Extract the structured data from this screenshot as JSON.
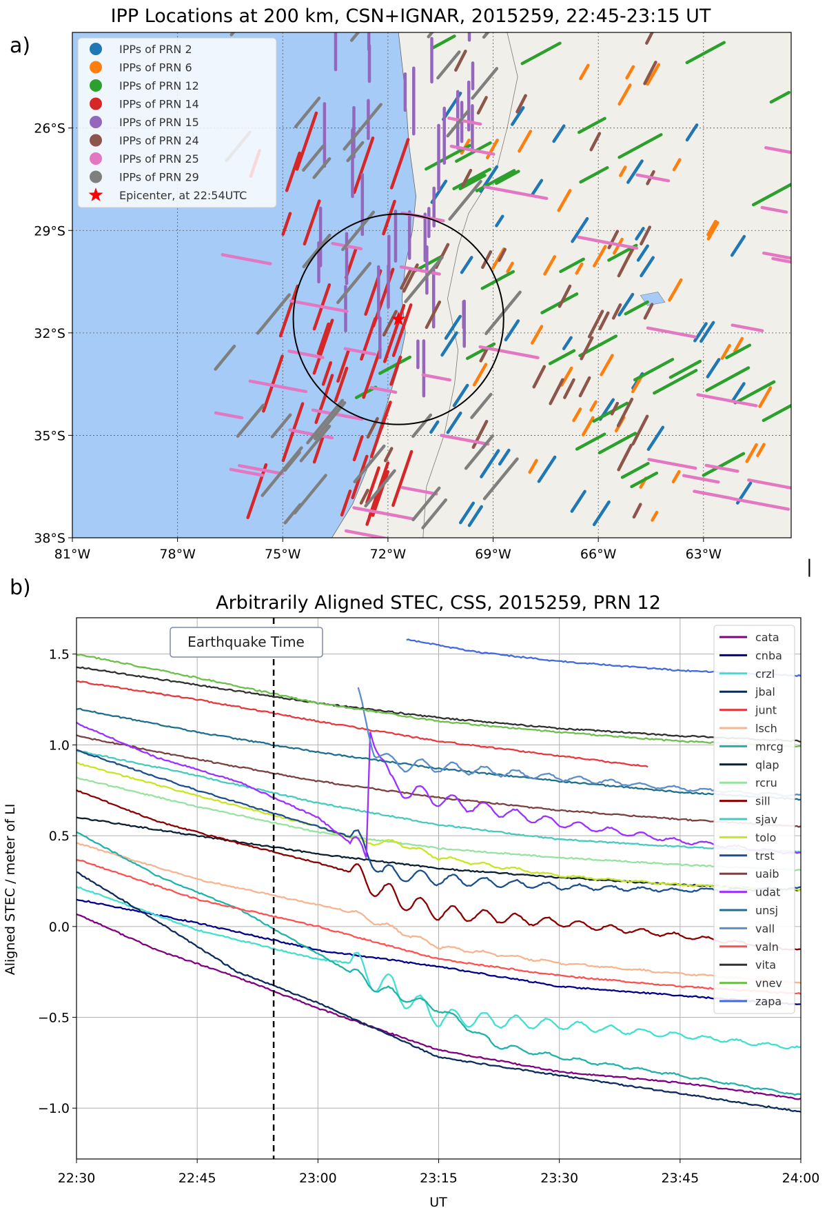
{
  "figure": {
    "panel_a_label": "a)",
    "panel_b_label": "b)"
  },
  "chart_data": [
    {
      "type": "scatter",
      "title": "IPP Locations at 200 km, CSN+IGNAR, 2015259, 22:45-23:15 UT",
      "xlim": [
        -81,
        -60.5
      ],
      "ylim": [
        -38,
        -23.2
      ],
      "x_ticks": [
        -81,
        -78,
        -75,
        -72,
        -69,
        -66,
        -63
      ],
      "x_tick_labels": [
        "81°W",
        "78°W",
        "75°W",
        "72°W",
        "69°W",
        "66°W",
        "63°W"
      ],
      "y_ticks": [
        -26,
        -29,
        -32,
        -35,
        -38
      ],
      "y_tick_labels": [
        "26°S",
        "29°S",
        "32°S",
        "35°S",
        "38°S"
      ],
      "grid": "dotted",
      "legend_position": "top-left",
      "colors": {
        "ocean": "#a6cbf6",
        "land": "#f1efe9"
      },
      "epicenter": {
        "label": "Epicenter, at 22:54UTC",
        "lon": -71.7,
        "lat": -31.6,
        "color": "#ff0000",
        "circle_radius_deg": 3.0
      },
      "series": [
        {
          "name": "IPPs of PRN 2",
          "color": "#1f77b4",
          "region": [
            -71.0,
            -62.0,
            -38.0,
            -25.5
          ],
          "tilt": [
            0.35,
            0.55
          ]
        },
        {
          "name": "IPPs of PRN 6",
          "color": "#ff7f0e",
          "region": [
            -70.0,
            -61.0,
            -38.0,
            -24.5
          ],
          "tilt": [
            0.25,
            0.45
          ]
        },
        {
          "name": "IPPs of PRN 12",
          "color": "#2ca02c",
          "region": [
            -73.5,
            -61.0,
            -37.6,
            -23.6
          ],
          "tilt": [
            0.9,
            0.5
          ]
        },
        {
          "name": "IPPs of PRN 14",
          "color": "#d62728",
          "region": [
            -76.0,
            -71.8,
            -38.0,
            -27.0
          ],
          "tilt": [
            0.4,
            1.2
          ]
        },
        {
          "name": "IPPs of PRN 15",
          "color": "#9467bd",
          "region": [
            -74.0,
            -69.5,
            -34.5,
            -23.2
          ],
          "tilt": [
            0.0,
            1.4
          ]
        },
        {
          "name": "IPPs of PRN 24",
          "color": "#8c564b",
          "region": [
            -73.0,
            -64.5,
            -37.8,
            -23.5
          ],
          "tilt": [
            0.3,
            0.6
          ]
        },
        {
          "name": "IPPs of PRN 25",
          "color": "#e377c2",
          "region": [
            -77.0,
            -61.0,
            -37.8,
            -25.5
          ],
          "tilt": [
            1.3,
            -0.25
          ]
        },
        {
          "name": "IPPs of PRN 29",
          "color": "#7f7f7f",
          "region": [
            -77.5,
            -69.0,
            -37.8,
            -23.2
          ],
          "tilt": [
            0.8,
            1.0
          ]
        }
      ]
    },
    {
      "type": "line",
      "title": "Arbitrarily Aligned STEC, CSS, 2015259, PRN 12",
      "xlabel": "UT",
      "ylabel": "Aligned STEC / meter of LI",
      "xlim": [
        0,
        90
      ],
      "ylim": [
        -1.28,
        1.7
      ],
      "x_ticks": [
        0,
        15,
        30,
        45,
        60,
        75,
        90
      ],
      "x_tick_labels": [
        "22:30",
        "22:45",
        "23:00",
        "23:15",
        "23:30",
        "23:45",
        "24:00"
      ],
      "y_ticks": [
        -1.0,
        -0.5,
        0.0,
        0.5,
        1.0,
        1.5
      ],
      "y_tick_labels": [
        "−1.0",
        "−0.5",
        "0.0",
        "0.5",
        "1.0",
        "1.5"
      ],
      "grid": true,
      "legend_position": "right",
      "earthquake_time": 24.5,
      "earthquake_label": "Earthquake Time",
      "series": [
        {
          "name": "cata",
          "color": "#800080",
          "x0": 0,
          "points": [
            [
              0,
              0.07
            ],
            [
              10,
              -0.13
            ],
            [
              20,
              -0.28
            ],
            [
              30,
              -0.45
            ],
            [
              45,
              -0.68
            ],
            [
              60,
              -0.8
            ],
            [
              75,
              -0.86
            ],
            [
              90,
              -0.95
            ]
          ],
          "tid": 0
        },
        {
          "name": "cnba",
          "color": "#00008b",
          "x0": 0,
          "points": [
            [
              0,
              0.15
            ],
            [
              15,
              0.02
            ],
            [
              30,
              -0.13
            ],
            [
              45,
              -0.22
            ],
            [
              60,
              -0.33
            ],
            [
              75,
              -0.38
            ],
            [
              90,
              -0.43
            ]
          ],
          "tid": 0
        },
        {
          "name": "crzl",
          "color": "#40e0d0",
          "x0": 0,
          "points": [
            [
              0,
              0.22
            ],
            [
              15,
              -0.02
            ],
            [
              30,
              -0.18
            ],
            [
              34,
              -0.2
            ],
            [
              45,
              -0.5
            ],
            [
              60,
              -0.54
            ],
            [
              75,
              -0.6
            ],
            [
              90,
              -0.67
            ]
          ],
          "tid": 0.25
        },
        {
          "name": "jbal",
          "color": "#0b2a5a",
          "x0": 0,
          "points": [
            [
              0,
              0.3
            ],
            [
              10,
              0.03
            ],
            [
              20,
              -0.25
            ],
            [
              30,
              -0.42
            ],
            [
              45,
              -0.72
            ],
            [
              60,
              -0.82
            ],
            [
              75,
              -0.92
            ],
            [
              90,
              -1.02
            ]
          ],
          "tid": 0
        },
        {
          "name": "junt",
          "color": "#e8383d",
          "x0": 0,
          "points": [
            [
              0,
              1.35
            ],
            [
              15,
              1.25
            ],
            [
              30,
              1.13
            ],
            [
              45,
              1.02
            ],
            [
              60,
              0.94
            ],
            [
              71,
              0.88
            ]
          ],
          "tid": 0
        },
        {
          "name": "lsch",
          "color": "#f7b48e",
          "x0": 0,
          "points": [
            [
              0,
              0.46
            ],
            [
              15,
              0.26
            ],
            [
              30,
              0.12
            ],
            [
              34,
              0.08
            ],
            [
              45,
              -0.11
            ],
            [
              60,
              -0.2
            ],
            [
              75,
              -0.26
            ],
            [
              90,
              -0.31
            ]
          ],
          "tid": 0.05
        },
        {
          "name": "mrcg",
          "color": "#20b2aa",
          "x0": 0,
          "points": [
            [
              0,
              0.52
            ],
            [
              10,
              0.28
            ],
            [
              20,
              0.1
            ],
            [
              30,
              -0.15
            ],
            [
              38,
              -0.35
            ],
            [
              45,
              -0.45
            ],
            [
              52,
              -0.65
            ],
            [
              60,
              -0.72
            ],
            [
              75,
              -0.82
            ],
            [
              90,
              -0.93
            ]
          ],
          "tid": 0.1
        },
        {
          "name": "qlap",
          "color": "#0a1f33",
          "x0": 0,
          "points": [
            [
              0,
              0.6
            ],
            [
              15,
              0.5
            ],
            [
              30,
              0.4
            ],
            [
              45,
              0.32
            ],
            [
              60,
              0.27
            ],
            [
              75,
              0.23
            ],
            [
              90,
              0.2
            ]
          ],
          "tid": 0
        },
        {
          "name": "rcru",
          "color": "#98e2a0",
          "x0": 0,
          "points": [
            [
              0,
              0.82
            ],
            [
              15,
              0.66
            ],
            [
              30,
              0.52
            ],
            [
              45,
              0.43
            ],
            [
              60,
              0.38
            ],
            [
              75,
              0.34
            ],
            [
              90,
              0.31
            ]
          ],
          "tid": 0
        },
        {
          "name": "sill",
          "color": "#8b0000",
          "x0": 0,
          "points": [
            [
              0,
              0.75
            ],
            [
              10,
              0.58
            ],
            [
              20,
              0.46
            ],
            [
              30,
              0.35
            ],
            [
              34,
              0.3
            ],
            [
              40,
              0.15
            ],
            [
              45,
              0.08
            ],
            [
              60,
              0.02
            ],
            [
              75,
              -0.05
            ],
            [
              90,
              -0.13
            ]
          ],
          "tid": 0.2
        },
        {
          "name": "sjav",
          "color": "#48c9c0",
          "x0": 0,
          "points": [
            [
              0,
              0.97
            ],
            [
              15,
              0.83
            ],
            [
              30,
              0.68
            ],
            [
              45,
              0.56
            ],
            [
              60,
              0.48
            ],
            [
              75,
              0.44
            ],
            [
              90,
              0.41
            ]
          ],
          "tid": 0
        },
        {
          "name": "tolo",
          "color": "#c8e620",
          "x0": 0,
          "points": [
            [
              0,
              0.9
            ],
            [
              15,
              0.72
            ],
            [
              30,
              0.55
            ],
            [
              35,
              0.47
            ],
            [
              40,
              0.46
            ],
            [
              45,
              0.38
            ],
            [
              60,
              0.28
            ],
            [
              75,
              0.23
            ],
            [
              90,
              0.2
            ]
          ],
          "tid": 0.05
        },
        {
          "name": "trst",
          "color": "#1a4e8c",
          "x0": 0,
          "points": [
            [
              0,
              0.97
            ],
            [
              15,
              0.75
            ],
            [
              30,
              0.55
            ],
            [
              35,
              0.48
            ],
            [
              38,
              0.3
            ],
            [
              45,
              0.26
            ],
            [
              60,
              0.22
            ],
            [
              75,
              0.2
            ],
            [
              90,
              0.21
            ]
          ],
          "tid": 0.15
        },
        {
          "name": "uaib",
          "color": "#7b3f3f",
          "x0": 0,
          "points": [
            [
              0,
              1.05
            ],
            [
              15,
              0.92
            ],
            [
              30,
              0.8
            ],
            [
              45,
              0.71
            ],
            [
              60,
              0.64
            ],
            [
              75,
              0.59
            ],
            [
              90,
              0.55
            ]
          ],
          "tid": 0
        },
        {
          "name": "udat",
          "color": "#9b30ff",
          "x0": 0,
          "points": [
            [
              0,
              1.12
            ],
            [
              10,
              0.93
            ],
            [
              20,
              0.8
            ],
            [
              30,
              0.6
            ],
            [
              34,
              0.46
            ],
            [
              36,
              0.38
            ],
            [
              36.5,
              1.12
            ],
            [
              39,
              0.78
            ],
            [
              45,
              0.7
            ],
            [
              60,
              0.57
            ],
            [
              75,
              0.47
            ],
            [
              90,
              0.4
            ]
          ],
          "tid": 0.2
        },
        {
          "name": "unsj",
          "color": "#1f6e8c",
          "x0": 0,
          "points": [
            [
              0,
              1.2
            ],
            [
              15,
              1.07
            ],
            [
              30,
              0.96
            ],
            [
              45,
              0.87
            ],
            [
              60,
              0.8
            ],
            [
              75,
              0.74
            ],
            [
              90,
              0.7
            ]
          ],
          "tid": 0
        },
        {
          "name": "vall",
          "color": "#5b8ec9",
          "x0": 35,
          "points": [
            [
              35,
              1.27
            ],
            [
              37,
              0.98
            ],
            [
              39,
              0.9
            ],
            [
              45,
              0.88
            ],
            [
              60,
              0.82
            ],
            [
              75,
              0.76
            ],
            [
              90,
              0.72
            ]
          ],
          "tid": 0.15
        },
        {
          "name": "valn",
          "color": "#ff5050",
          "x0": 0,
          "points": [
            [
              0,
              0.37
            ],
            [
              15,
              0.15
            ],
            [
              30,
              0.0
            ],
            [
              45,
              -0.18
            ],
            [
              60,
              -0.27
            ],
            [
              75,
              -0.33
            ],
            [
              90,
              -0.37
            ]
          ],
          "tid": 0
        },
        {
          "name": "vita",
          "color": "#303030",
          "x0": 0,
          "points": [
            [
              0,
              1.43
            ],
            [
              15,
              1.33
            ],
            [
              30,
              1.23
            ],
            [
              45,
              1.15
            ],
            [
              60,
              1.09
            ],
            [
              75,
              1.05
            ],
            [
              90,
              1.02
            ]
          ],
          "tid": 0
        },
        {
          "name": "vnev",
          "color": "#6cc04a",
          "x0": 0,
          "points": [
            [
              0,
              1.5
            ],
            [
              15,
              1.37
            ],
            [
              30,
              1.23
            ],
            [
              45,
              1.13
            ],
            [
              60,
              1.07
            ],
            [
              75,
              1.02
            ],
            [
              90,
              0.99
            ]
          ],
          "tid": 0
        },
        {
          "name": "zapa",
          "color": "#4169e1",
          "x0": 41,
          "points": [
            [
              41,
              1.58
            ],
            [
              50,
              1.51
            ],
            [
              60,
              1.46
            ],
            [
              75,
              1.41
            ],
            [
              90,
              1.38
            ]
          ],
          "tid": 0
        }
      ]
    }
  ]
}
